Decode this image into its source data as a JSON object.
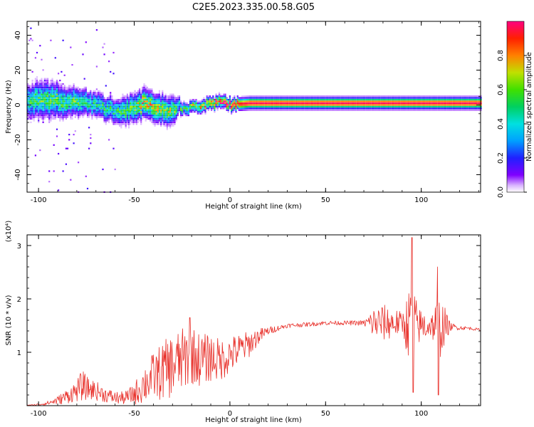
{
  "title": "C2E5.2023.335.00.58.G05",
  "colors": {
    "snr_line": "#e8302a",
    "axis": "#000000",
    "background": "#ffffff"
  },
  "chart_data": [
    {
      "type": "heatmap",
      "title": "C2E5.2023.335.00.58.G05",
      "xlabel": "Height of straight line (km)",
      "ylabel": "Frequency (Hz)",
      "xlim": [
        -106,
        131
      ],
      "ylim": [
        -50,
        48
      ],
      "x_ticks": [
        -100,
        -50,
        0,
        50,
        100
      ],
      "y_ticks": [
        -40,
        -20,
        0,
        20,
        40
      ],
      "colorbar": {
        "label": "Normalized spectral amplitude",
        "range": [
          0,
          1
        ],
        "ticks": [
          "0.0",
          "0.2",
          "0.4",
          "0.6",
          "0.8"
        ],
        "colormap": "rainbow (white/purple low to red high)"
      },
      "ridge": {
        "description": "frequency of peak spectral amplitude vs height",
        "x": [
          -106,
          -100,
          -95,
          -90,
          -85,
          -80,
          -75,
          -70,
          -65,
          -60,
          -55,
          -50,
          -45,
          -40,
          -35,
          -30,
          -27,
          -25,
          -20,
          -15,
          -10,
          -5,
          0,
          5,
          10,
          20,
          30,
          40,
          50,
          60,
          70,
          75,
          80,
          90,
          95,
          100,
          110,
          120,
          131
        ],
        "y": [
          2,
          3,
          2,
          3,
          1,
          2,
          1,
          0,
          -2,
          -3,
          -3,
          -2,
          1,
          -1,
          -3,
          -3,
          -1,
          -2,
          -1,
          0,
          0.5,
          2,
          0,
          0.5,
          1,
          1,
          1,
          1,
          1,
          1,
          1,
          1,
          1,
          1,
          1,
          1,
          1,
          1,
          1
        ],
        "peak_amplitude": [
          0.45,
          0.5,
          0.5,
          0.55,
          0.5,
          0.5,
          0.45,
          0.45,
          0.45,
          0.45,
          0.5,
          0.55,
          0.7,
          0.65,
          0.6,
          0.55,
          0.45,
          0.5,
          0.6,
          0.7,
          0.8,
          0.9,
          0.95,
          0.95,
          0.97,
          0.97,
          0.97,
          0.97,
          0.97,
          0.97,
          0.97,
          0.97,
          0.97,
          0.97,
          0.97,
          0.97,
          0.97,
          0.97,
          0.97
        ],
        "spread_hz": [
          8,
          9,
          9,
          8,
          7,
          7,
          6,
          6,
          6,
          6,
          7,
          7,
          7,
          7,
          7,
          7,
          4,
          3,
          3,
          3,
          3,
          3,
          3,
          3,
          3,
          3,
          3,
          3,
          3,
          3,
          3,
          3,
          3,
          3,
          3,
          3,
          3,
          3,
          3
        ]
      }
    },
    {
      "type": "line",
      "xlabel": "Height of straight line (km)",
      "ylabel": "SNR (10 * v/v)",
      "multiplier": "(x10⁴)",
      "xlim": [
        -106,
        131
      ],
      "ylim": [
        0,
        3.2
      ],
      "x_ticks": [
        -100,
        -50,
        0,
        50,
        100
      ],
      "y_ticks": [
        1,
        2,
        3
      ],
      "series": [
        {
          "x": [
            -106,
            -100,
            -95,
            -90,
            -85,
            -80,
            -77,
            -75,
            -70,
            -65,
            -60,
            -55,
            -50,
            -47,
            -45,
            -40,
            -35,
            -30,
            -25,
            -20,
            -15,
            -10,
            -5,
            0,
            5,
            10,
            15,
            20,
            25,
            30,
            40,
            50,
            60,
            70,
            75,
            80,
            85,
            90,
            95,
            98,
            100,
            103,
            105,
            108,
            110,
            115,
            120,
            125,
            131
          ],
          "values": [
            0.0,
            0.02,
            0.05,
            0.1,
            0.18,
            0.28,
            0.38,
            0.33,
            0.28,
            0.2,
            0.15,
            0.14,
            0.22,
            0.32,
            0.4,
            0.55,
            0.65,
            0.75,
            0.85,
            0.95,
            0.85,
            0.9,
            0.85,
            0.95,
            1.05,
            1.15,
            1.3,
            1.4,
            1.45,
            1.5,
            1.52,
            1.55,
            1.55,
            1.55,
            1.55,
            1.55,
            1.55,
            1.55,
            1.5,
            1.5,
            1.5,
            1.5,
            1.5,
            1.5,
            1.5,
            1.48,
            1.46,
            1.45,
            1.42
          ],
          "variability": [
            0.01,
            0.02,
            0.04,
            0.08,
            0.14,
            0.2,
            0.3,
            0.22,
            0.18,
            0.14,
            0.12,
            0.12,
            0.2,
            0.3,
            0.35,
            0.45,
            0.55,
            0.6,
            0.6,
            0.55,
            0.5,
            0.45,
            0.4,
            0.35,
            0.3,
            0.25,
            0.15,
            0.08,
            0.05,
            0.04,
            0.04,
            0.04,
            0.04,
            0.05,
            0.3,
            0.35,
            0.3,
            0.2,
            0.9,
            0.4,
            0.3,
            0.3,
            0.2,
            0.5,
            0.6,
            0.08,
            0.04,
            0.03,
            0.02
          ]
        }
      ]
    }
  ]
}
